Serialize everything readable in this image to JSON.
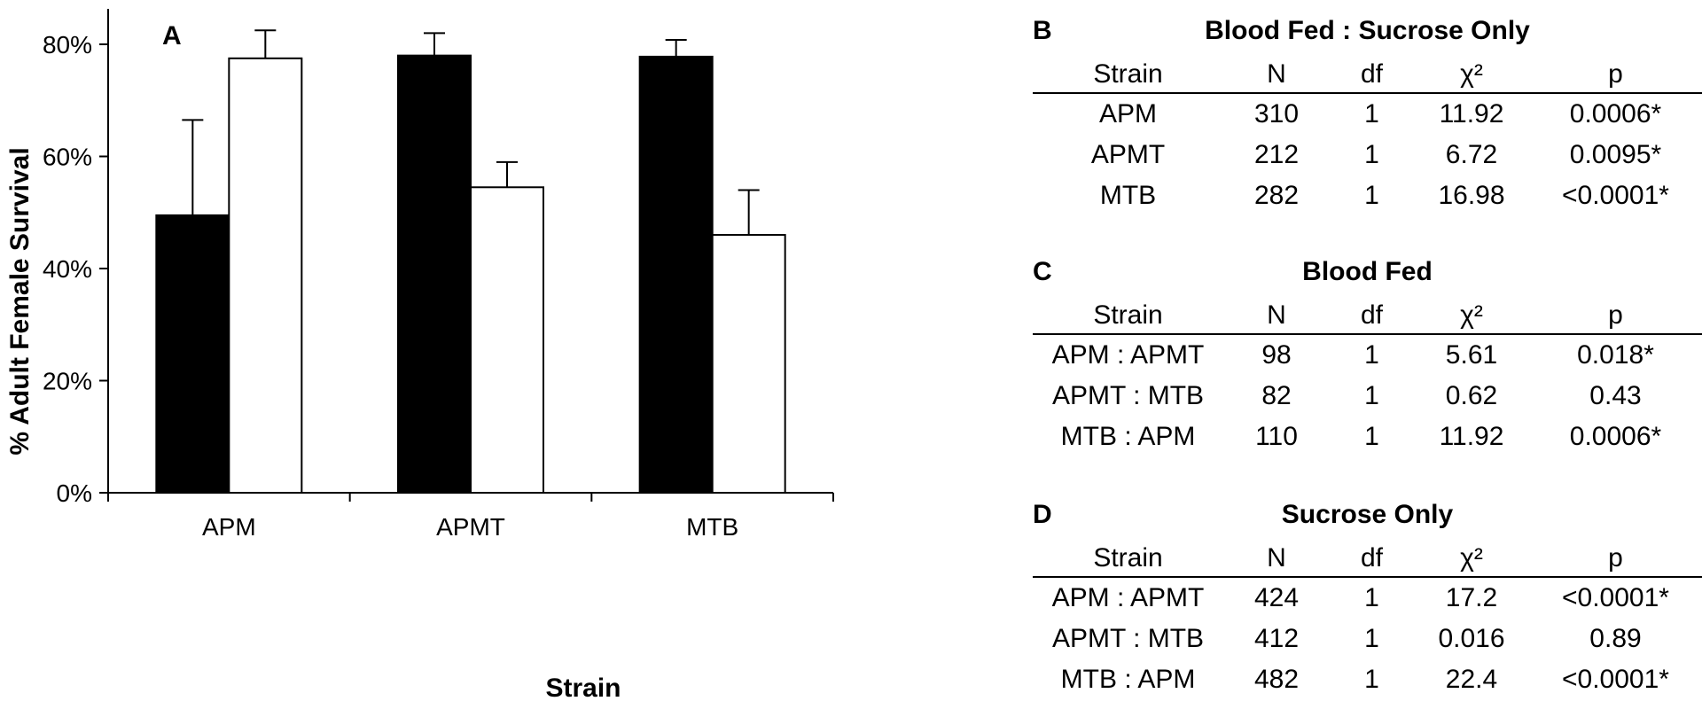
{
  "chart_data": {
    "type": "bar",
    "panel_label": "A",
    "categories": [
      "APM",
      "APMT",
      "MTB"
    ],
    "series": [
      {
        "color": "#000000",
        "values": [
          49.5,
          78.0,
          77.8
        ],
        "error": [
          17.0,
          4.0,
          3.0
        ]
      },
      {
        "color": "#ffffff",
        "values": [
          77.5,
          54.5,
          46.0
        ],
        "error": [
          5.0,
          4.5,
          8.0
        ]
      }
    ],
    "xlabel": "Strain",
    "ylabel": "% Adult Female Survival",
    "ylim": [
      0,
      80
    ],
    "yticks": [
      0,
      20,
      40,
      60,
      80
    ],
    "ytick_labels": [
      "0%",
      "20%",
      "40%",
      "60%",
      "80%"
    ],
    "grid": false
  },
  "tables": [
    {
      "panel_label": "B",
      "title": "Blood Fed : Sucrose Only",
      "columns": [
        "Strain",
        "N",
        "df",
        "χ²",
        "p"
      ],
      "rows": [
        [
          "APM",
          "310",
          "1",
          "11.92",
          "0.0006*"
        ],
        [
          "APMT",
          "212",
          "1",
          "6.72",
          "0.0095*"
        ],
        [
          "MTB",
          "282",
          "1",
          "16.98",
          "<0.0001*"
        ]
      ]
    },
    {
      "panel_label": "C",
      "title": "Blood Fed",
      "columns": [
        "Strain",
        "N",
        "df",
        "χ²",
        "p"
      ],
      "rows": [
        [
          "APM : APMT",
          "98",
          "1",
          "5.61",
          "0.018*"
        ],
        [
          "APMT : MTB",
          "82",
          "1",
          "0.62",
          "0.43"
        ],
        [
          "MTB : APM",
          "110",
          "1",
          "11.92",
          "0.0006*"
        ]
      ]
    },
    {
      "panel_label": "D",
      "title": "Sucrose Only",
      "columns": [
        "Strain",
        "N",
        "df",
        "χ²",
        "p"
      ],
      "rows": [
        [
          "APM : APMT",
          "424",
          "1",
          "17.2",
          "<0.0001*"
        ],
        [
          "APMT : MTB",
          "412",
          "1",
          "0.016",
          "0.89"
        ],
        [
          "MTB : APM",
          "482",
          "1",
          "22.4",
          "<0.0001*"
        ]
      ]
    }
  ]
}
